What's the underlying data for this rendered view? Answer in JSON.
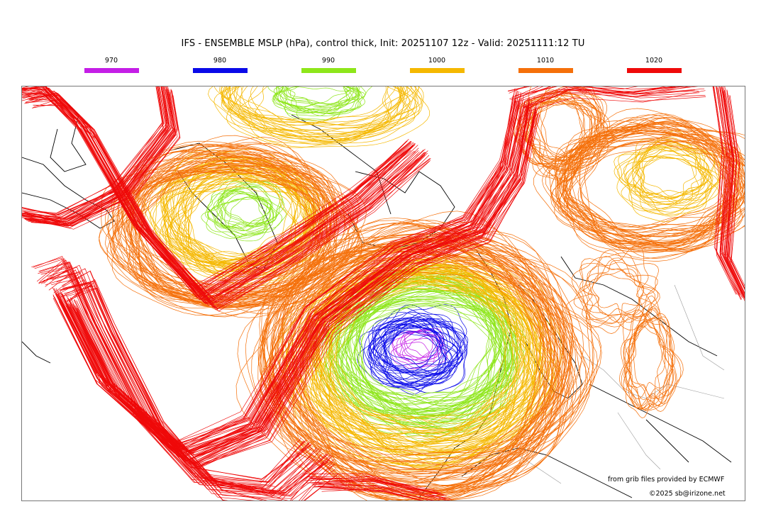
{
  "title": "IFS - ENSEMBLE MSLP (hPa), control thick, Init: 20251107 12z - Valid: 20251111:12 TU",
  "legend": [
    {
      "label": "970",
      "color": "#c41ee6"
    },
    {
      "label": "980",
      "color": "#0a0ae8"
    },
    {
      "label": "990",
      "color": "#8ee61a"
    },
    {
      "label": "1000",
      "color": "#f5b800"
    },
    {
      "label": "1010",
      "color": "#f5700a"
    },
    {
      "label": "1020",
      "color": "#ef0a0a"
    }
  ],
  "credits": {
    "source": "from grib files provided by ECMWF",
    "copyright": "©2025 sb@irizone.net"
  }
}
